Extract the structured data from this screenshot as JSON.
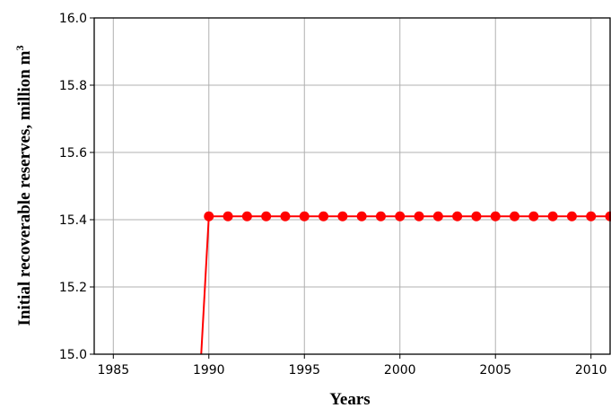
{
  "chart_data": {
    "type": "line",
    "xlabel": "Years",
    "ylabel": "Initial recoverable reserves, million m",
    "ylabel_superscript": "3",
    "xlim": [
      1984,
      2011
    ],
    "ylim": [
      15.0,
      16.0
    ],
    "x_ticks": [
      1985,
      1990,
      1995,
      2000,
      2005,
      2010
    ],
    "y_ticks": [
      "15.0",
      "15.2",
      "15.4",
      "15.6",
      "15.8",
      "16.0"
    ],
    "grid": true,
    "series": [
      {
        "color": "#ff0000",
        "marker": "circle",
        "x": [
          1989.6,
          1990,
          1991,
          1992,
          1993,
          1994,
          1995,
          1996,
          1997,
          1998,
          1999,
          2000,
          2001,
          2002,
          2003,
          2004,
          2005,
          2006,
          2007,
          2008,
          2009,
          2010,
          2011
        ],
        "y": [
          15.0,
          15.41,
          15.41,
          15.41,
          15.41,
          15.41,
          15.41,
          15.41,
          15.41,
          15.41,
          15.41,
          15.41,
          15.41,
          15.41,
          15.41,
          15.41,
          15.41,
          15.41,
          15.41,
          15.41,
          15.41,
          15.41,
          15.41
        ],
        "marker_from_index": 1
      }
    ]
  }
}
